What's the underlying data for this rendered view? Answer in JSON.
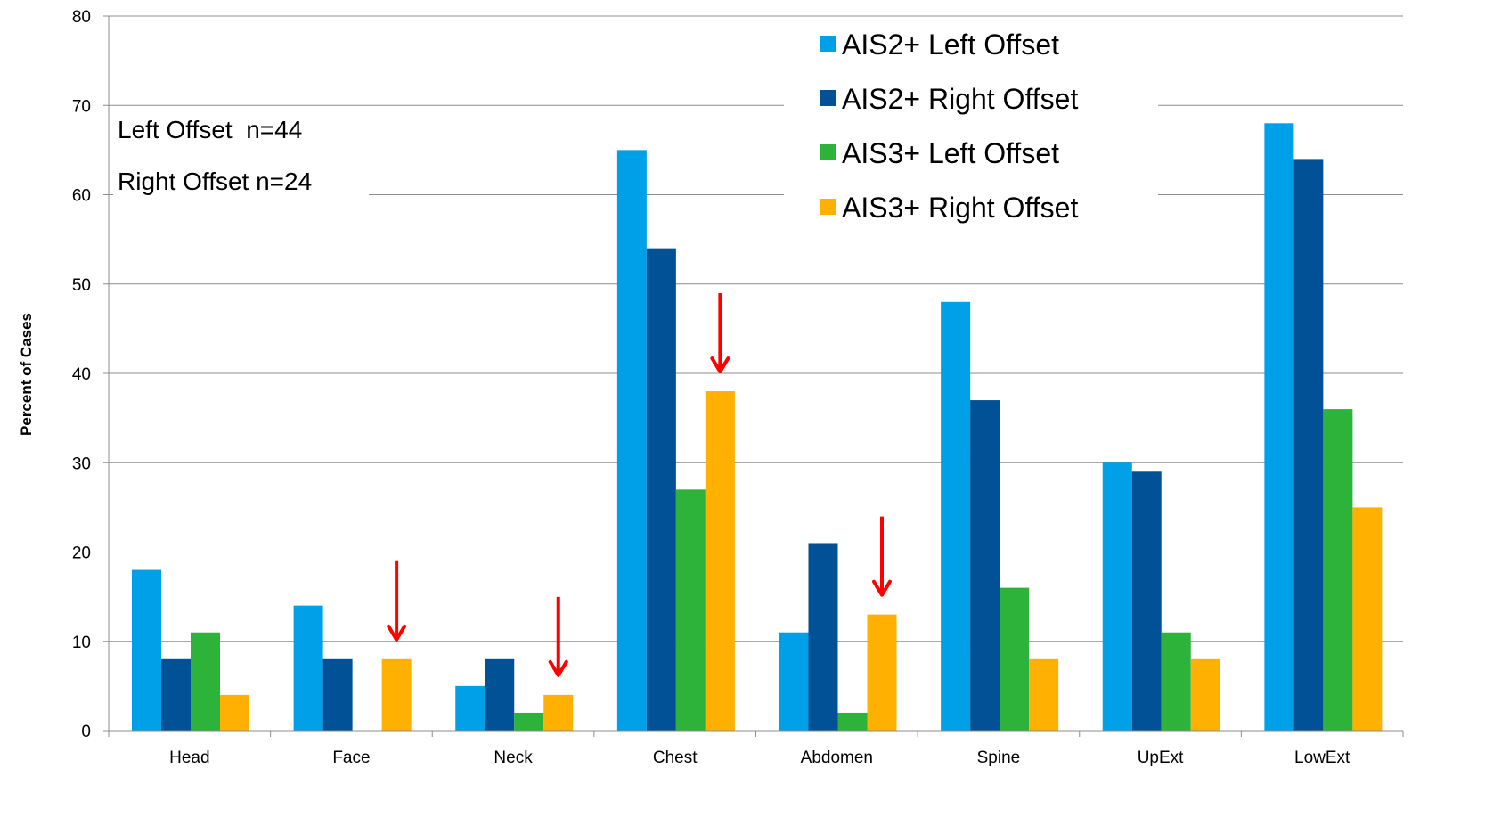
{
  "chart_data": {
    "type": "bar",
    "ylabel": "Percent of Cases",
    "xlabel": "",
    "ylim": [
      0,
      80
    ],
    "yticks": [
      0,
      10,
      20,
      30,
      40,
      50,
      60,
      70,
      80
    ],
    "grid": true,
    "legend_position": "top-right",
    "categories": [
      "Head",
      "Face",
      "Neck",
      "Chest",
      "Abdomen",
      "Spine",
      "UpExt",
      "LowExt"
    ],
    "series": [
      {
        "name": "AIS2+ Left Offset",
        "color": "#00A0E9",
        "values": [
          18,
          14,
          5,
          65,
          11,
          48,
          30,
          68
        ]
      },
      {
        "name": "AIS2+ Right Offset",
        "color": "#005196",
        "values": [
          8,
          8,
          8,
          54,
          21,
          37,
          29,
          64
        ]
      },
      {
        "name": "AIS3+ Left Offset",
        "color": "#2DB23A",
        "values": [
          11,
          0,
          2,
          27,
          2,
          16,
          11,
          36
        ]
      },
      {
        "name": "AIS3+ Right Offset",
        "color": "#FFB000",
        "values": [
          4,
          8,
          4,
          38,
          13,
          8,
          8,
          25
        ]
      }
    ],
    "annotations": {
      "notes": [
        "Left Offset  n=44",
        "Right Offset n=24"
      ],
      "arrow_color": "#FF0000",
      "arrows": [
        {
          "category": "Face",
          "series": "AIS3+ Right Offset"
        },
        {
          "category": "Neck",
          "series": "AIS3+ Right Offset"
        },
        {
          "category": "Chest",
          "series": "AIS3+ Right Offset"
        },
        {
          "category": "Abdomen",
          "series": "AIS3+ Right Offset"
        }
      ]
    }
  }
}
